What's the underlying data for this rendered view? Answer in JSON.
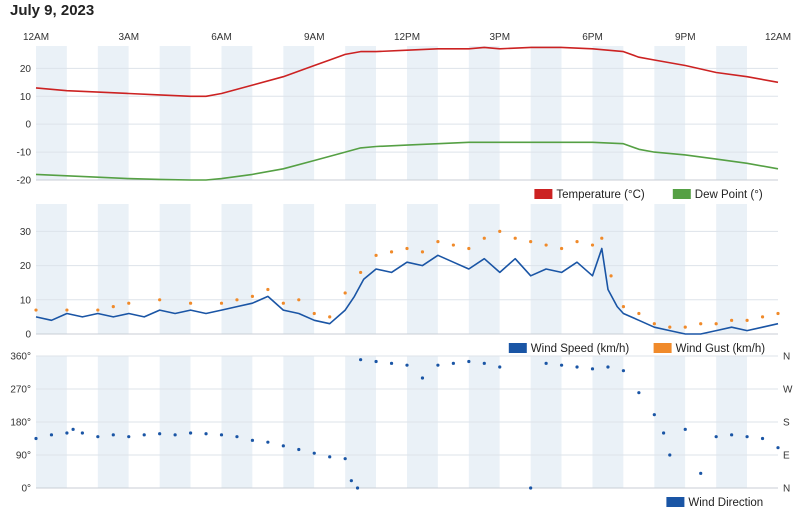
{
  "page": {
    "title": "July 9, 2023"
  },
  "colors": {
    "temperature": "#cc2222",
    "dew_point": "#55a044",
    "wind_speed": "#1a55a5",
    "wind_gust": "#f08a2a",
    "wind_direction": "#1a55a5",
    "band_light": "#eaf1f7",
    "band_white": "#ffffff"
  },
  "time_axis": {
    "labels": [
      "12AM",
      "3AM",
      "6AM",
      "9AM",
      "12PM",
      "3PM",
      "6PM",
      "9PM",
      "12AM"
    ]
  },
  "chart_data": [
    {
      "type": "line",
      "title": "",
      "xlabel": "",
      "ylabel": "",
      "x_unit": "hour of day",
      "x_range": [
        0,
        24
      ],
      "ylim": [
        -20,
        28
      ],
      "yticks": [
        -20,
        -10,
        0,
        10,
        20
      ],
      "legend_position": "bottom-right",
      "series": [
        {
          "name": "Temperature (°C)",
          "color": "#cc2222",
          "points": [
            [
              0,
              13
            ],
            [
              1,
              12
            ],
            [
              2,
              11.5
            ],
            [
              3,
              11
            ],
            [
              4,
              10.5
            ],
            [
              5,
              10
            ],
            [
              5.5,
              10
            ],
            [
              6,
              11
            ],
            [
              7,
              14
            ],
            [
              8,
              17
            ],
            [
              9,
              21
            ],
            [
              9.5,
              23
            ],
            [
              10,
              25
            ],
            [
              10.5,
              26
            ],
            [
              11,
              26
            ],
            [
              12,
              26.5
            ],
            [
              13,
              27
            ],
            [
              14,
              27
            ],
            [
              14.5,
              27.5
            ],
            [
              15,
              27
            ],
            [
              16,
              27.5
            ],
            [
              17,
              27.5
            ],
            [
              18,
              27
            ],
            [
              19,
              26
            ],
            [
              19.5,
              24
            ],
            [
              20,
              23
            ],
            [
              21,
              21
            ],
            [
              22,
              18.5
            ],
            [
              23,
              17
            ],
            [
              24,
              15
            ]
          ]
        },
        {
          "name": "Dew Point (°)",
          "color": "#55a044",
          "points": [
            [
              0,
              -18
            ],
            [
              1,
              -18.5
            ],
            [
              2,
              -19
            ],
            [
              3,
              -19.5
            ],
            [
              4,
              -19.8
            ],
            [
              5,
              -20
            ],
            [
              5.5,
              -20
            ],
            [
              6,
              -19.5
            ],
            [
              7,
              -18
            ],
            [
              8,
              -16
            ],
            [
              9,
              -13
            ],
            [
              10,
              -10
            ],
            [
              10.5,
              -8.5
            ],
            [
              11,
              -8
            ],
            [
              12,
              -7.5
            ],
            [
              13,
              -7
            ],
            [
              14,
              -6.5
            ],
            [
              15,
              -6.5
            ],
            [
              16,
              -6.5
            ],
            [
              17,
              -6.5
            ],
            [
              18,
              -6.5
            ],
            [
              19,
              -7
            ],
            [
              19.5,
              -9
            ],
            [
              20,
              -10
            ],
            [
              21,
              -11
            ],
            [
              22,
              -12.5
            ],
            [
              23,
              -14
            ],
            [
              24,
              -16
            ]
          ]
        }
      ]
    },
    {
      "type": "line",
      "title": "",
      "xlabel": "",
      "ylabel": "",
      "x_unit": "hour of day",
      "x_range": [
        0,
        24
      ],
      "ylim": [
        0,
        38
      ],
      "yticks": [
        0,
        10,
        20,
        30
      ],
      "legend_position": "bottom-right",
      "series": [
        {
          "name": "Wind Speed (km/h)",
          "color": "#1a55a5",
          "points": [
            [
              0,
              5
            ],
            [
              0.5,
              4
            ],
            [
              1,
              6
            ],
            [
              1.5,
              5
            ],
            [
              2,
              6
            ],
            [
              2.5,
              5
            ],
            [
              3,
              6
            ],
            [
              3.5,
              5
            ],
            [
              4,
              7
            ],
            [
              4.5,
              6
            ],
            [
              5,
              7
            ],
            [
              5.5,
              6
            ],
            [
              6,
              7
            ],
            [
              6.5,
              8
            ],
            [
              7,
              9
            ],
            [
              7.5,
              11
            ],
            [
              8,
              7
            ],
            [
              8.5,
              6
            ],
            [
              9,
              4
            ],
            [
              9.5,
              3
            ],
            [
              10,
              7
            ],
            [
              10.3,
              11
            ],
            [
              10.6,
              16
            ],
            [
              11,
              19
            ],
            [
              11.5,
              18
            ],
            [
              12,
              21
            ],
            [
              12.5,
              20
            ],
            [
              13,
              23
            ],
            [
              13.5,
              21
            ],
            [
              14,
              19
            ],
            [
              14.5,
              22
            ],
            [
              15,
              18
            ],
            [
              15.5,
              22
            ],
            [
              16,
              17
            ],
            [
              16.5,
              19
            ],
            [
              17,
              18
            ],
            [
              17.5,
              21
            ],
            [
              18,
              17
            ],
            [
              18.3,
              25
            ],
            [
              18.5,
              13
            ],
            [
              18.8,
              8
            ],
            [
              19,
              6
            ],
            [
              19.5,
              4
            ],
            [
              20,
              2
            ],
            [
              20.5,
              1
            ],
            [
              21,
              0
            ],
            [
              21.5,
              0
            ],
            [
              22,
              1
            ],
            [
              22.5,
              2
            ],
            [
              23,
              1
            ],
            [
              23.5,
              2
            ],
            [
              24,
              3
            ]
          ]
        },
        {
          "name": "Wind Gust (km/h)",
          "color": "#f08a2a",
          "points": [
            [
              0,
              7
            ],
            [
              1,
              7
            ],
            [
              2,
              7
            ],
            [
              2.5,
              8
            ],
            [
              3,
              9
            ],
            [
              4,
              10
            ],
            [
              5,
              9
            ],
            [
              6,
              9
            ],
            [
              6.5,
              10
            ],
            [
              7,
              11
            ],
            [
              7.5,
              13
            ],
            [
              8,
              9
            ],
            [
              8.5,
              10
            ],
            [
              9,
              6
            ],
            [
              9.5,
              5
            ],
            [
              10,
              12
            ],
            [
              10.5,
              18
            ],
            [
              11,
              23
            ],
            [
              11.5,
              24
            ],
            [
              12,
              25
            ],
            [
              12.5,
              24
            ],
            [
              13,
              27
            ],
            [
              13.5,
              26
            ],
            [
              14,
              25
            ],
            [
              14.5,
              28
            ],
            [
              15,
              30
            ],
            [
              15.5,
              28
            ],
            [
              16,
              27
            ],
            [
              16.5,
              26
            ],
            [
              17,
              25
            ],
            [
              17.5,
              27
            ],
            [
              18,
              26
            ],
            [
              18.3,
              28
            ],
            [
              18.6,
              17
            ],
            [
              19,
              8
            ],
            [
              19.5,
              6
            ],
            [
              20,
              3
            ],
            [
              20.5,
              2
            ],
            [
              21,
              2
            ],
            [
              21.5,
              3
            ],
            [
              22,
              3
            ],
            [
              22.5,
              4
            ],
            [
              23,
              4
            ],
            [
              23.5,
              5
            ],
            [
              24,
              6
            ]
          ]
        }
      ]
    },
    {
      "type": "scatter",
      "title": "",
      "xlabel": "",
      "ylabel": "",
      "x_unit": "hour of day",
      "x_range": [
        0,
        24
      ],
      "ylim": [
        0,
        360
      ],
      "yticks": [
        0,
        90,
        180,
        270,
        360
      ],
      "y_right_labels": [
        "N",
        "E",
        "S",
        "W",
        "N"
      ],
      "legend_position": "bottom-right",
      "series": [
        {
          "name": "Wind Direction",
          "color": "#1a55a5",
          "points": [
            [
              0,
              135
            ],
            [
              0.5,
              145
            ],
            [
              1,
              150
            ],
            [
              1.2,
              160
            ],
            [
              1.5,
              150
            ],
            [
              2,
              140
            ],
            [
              2.5,
              145
            ],
            [
              3,
              140
            ],
            [
              3.5,
              145
            ],
            [
              4,
              148
            ],
            [
              4.5,
              145
            ],
            [
              5,
              150
            ],
            [
              5.5,
              148
            ],
            [
              6,
              145
            ],
            [
              6.5,
              140
            ],
            [
              7,
              130
            ],
            [
              7.5,
              125
            ],
            [
              8,
              115
            ],
            [
              8.5,
              105
            ],
            [
              9,
              95
            ],
            [
              9.5,
              85
            ],
            [
              10,
              80
            ],
            [
              10.2,
              20
            ],
            [
              10.4,
              0
            ],
            [
              10.5,
              350
            ],
            [
              11,
              345
            ],
            [
              11.5,
              340
            ],
            [
              12,
              335
            ],
            [
              12.5,
              300
            ],
            [
              13,
              335
            ],
            [
              13.5,
              340
            ],
            [
              14,
              345
            ],
            [
              14.5,
              340
            ],
            [
              15,
              330
            ],
            [
              16,
              0
            ],
            [
              16.5,
              340
            ],
            [
              17,
              335
            ],
            [
              17.5,
              330
            ],
            [
              18,
              325
            ],
            [
              18.5,
              330
            ],
            [
              19,
              320
            ],
            [
              19.5,
              260
            ],
            [
              20,
              200
            ],
            [
              20.3,
              150
            ],
            [
              20.5,
              90
            ],
            [
              21,
              160
            ],
            [
              21.5,
              40
            ],
            [
              22,
              140
            ],
            [
              22.5,
              145
            ],
            [
              23,
              140
            ],
            [
              23.5,
              135
            ],
            [
              24,
              110
            ]
          ]
        }
      ]
    }
  ]
}
